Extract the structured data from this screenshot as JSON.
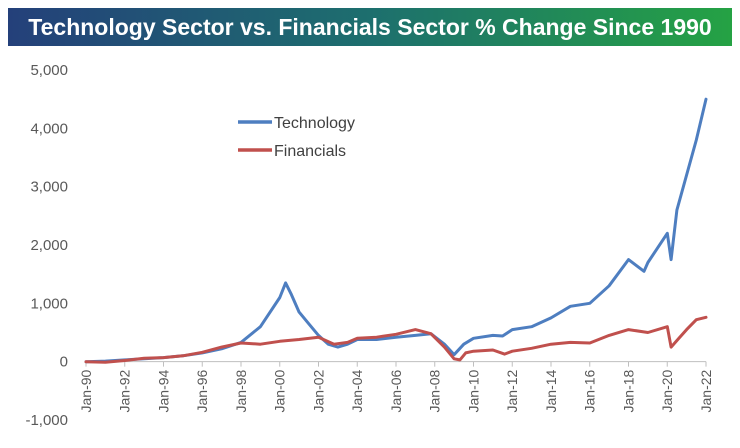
{
  "chart_data": {
    "type": "line",
    "title": "Technology Sector vs. Financials Sector % Change Since 1990",
    "xlabel": "",
    "ylabel": "",
    "xlim": [
      "Jan-90",
      "Jan-22"
    ],
    "ylim": [
      -1000,
      5000
    ],
    "yticks": [
      "5,000",
      "4,000",
      "3,000",
      "2,000",
      "1,000",
      "0",
      "-1,000"
    ],
    "xticks": [
      "Jan-90",
      "Jan-92",
      "Jan-94",
      "Jan-96",
      "Jan-98",
      "Jan-00",
      "Jan-02",
      "Jan-04",
      "Jan-06",
      "Jan-08",
      "Jan-10",
      "Jan-12",
      "Jan-14",
      "Jan-16",
      "Jan-18",
      "Jan-20",
      "Jan-22"
    ],
    "legend": "upper-left",
    "grid": false,
    "series": [
      {
        "name": "Technology",
        "color": "#4e7ec0",
        "points": [
          [
            1990.0,
            0
          ],
          [
            1991.0,
            10
          ],
          [
            1992.0,
            30
          ],
          [
            1993.0,
            50
          ],
          [
            1994.0,
            70
          ],
          [
            1995.0,
            100
          ],
          [
            1996.0,
            150
          ],
          [
            1997.0,
            220
          ],
          [
            1998.0,
            330
          ],
          [
            1999.0,
            600
          ],
          [
            2000.0,
            1100
          ],
          [
            2000.3,
            1350
          ],
          [
            2000.6,
            1150
          ],
          [
            2001.0,
            850
          ],
          [
            2001.5,
            650
          ],
          [
            2002.0,
            450
          ],
          [
            2002.5,
            300
          ],
          [
            2003.0,
            250
          ],
          [
            2003.5,
            300
          ],
          [
            2004.0,
            380
          ],
          [
            2005.0,
            380
          ],
          [
            2006.0,
            420
          ],
          [
            2007.0,
            450
          ],
          [
            2007.8,
            480
          ],
          [
            2008.5,
            300
          ],
          [
            2009.0,
            120
          ],
          [
            2009.5,
            300
          ],
          [
            2010.0,
            400
          ],
          [
            2011.0,
            450
          ],
          [
            2011.5,
            440
          ],
          [
            2012.0,
            550
          ],
          [
            2013.0,
            600
          ],
          [
            2014.0,
            750
          ],
          [
            2015.0,
            950
          ],
          [
            2016.0,
            1000
          ],
          [
            2017.0,
            1300
          ],
          [
            2018.0,
            1750
          ],
          [
            2018.8,
            1550
          ],
          [
            2019.0,
            1700
          ],
          [
            2020.0,
            2200
          ],
          [
            2020.2,
            1750
          ],
          [
            2020.5,
            2600
          ],
          [
            2021.0,
            3200
          ],
          [
            2021.5,
            3800
          ],
          [
            2022.0,
            4500
          ]
        ]
      },
      {
        "name": "Financials",
        "color": "#c0504d",
        "points": [
          [
            1990.0,
            0
          ],
          [
            1991.0,
            -10
          ],
          [
            1992.0,
            20
          ],
          [
            1993.0,
            60
          ],
          [
            1994.0,
            70
          ],
          [
            1995.0,
            100
          ],
          [
            1996.0,
            160
          ],
          [
            1997.0,
            250
          ],
          [
            1998.0,
            320
          ],
          [
            1999.0,
            300
          ],
          [
            2000.0,
            350
          ],
          [
            2001.0,
            380
          ],
          [
            2002.0,
            420
          ],
          [
            2002.8,
            300
          ],
          [
            2003.5,
            330
          ],
          [
            2004.0,
            400
          ],
          [
            2005.0,
            420
          ],
          [
            2006.0,
            470
          ],
          [
            2007.0,
            550
          ],
          [
            2007.8,
            480
          ],
          [
            2008.5,
            250
          ],
          [
            2009.0,
            50
          ],
          [
            2009.3,
            30
          ],
          [
            2009.6,
            150
          ],
          [
            2010.0,
            180
          ],
          [
            2011.0,
            200
          ],
          [
            2011.6,
            130
          ],
          [
            2012.0,
            180
          ],
          [
            2013.0,
            230
          ],
          [
            2014.0,
            300
          ],
          [
            2015.0,
            330
          ],
          [
            2016.0,
            320
          ],
          [
            2017.0,
            450
          ],
          [
            2018.0,
            550
          ],
          [
            2019.0,
            500
          ],
          [
            2020.0,
            600
          ],
          [
            2020.2,
            250
          ],
          [
            2020.6,
            400
          ],
          [
            2021.0,
            550
          ],
          [
            2021.5,
            720
          ],
          [
            2022.0,
            760
          ]
        ]
      }
    ]
  }
}
